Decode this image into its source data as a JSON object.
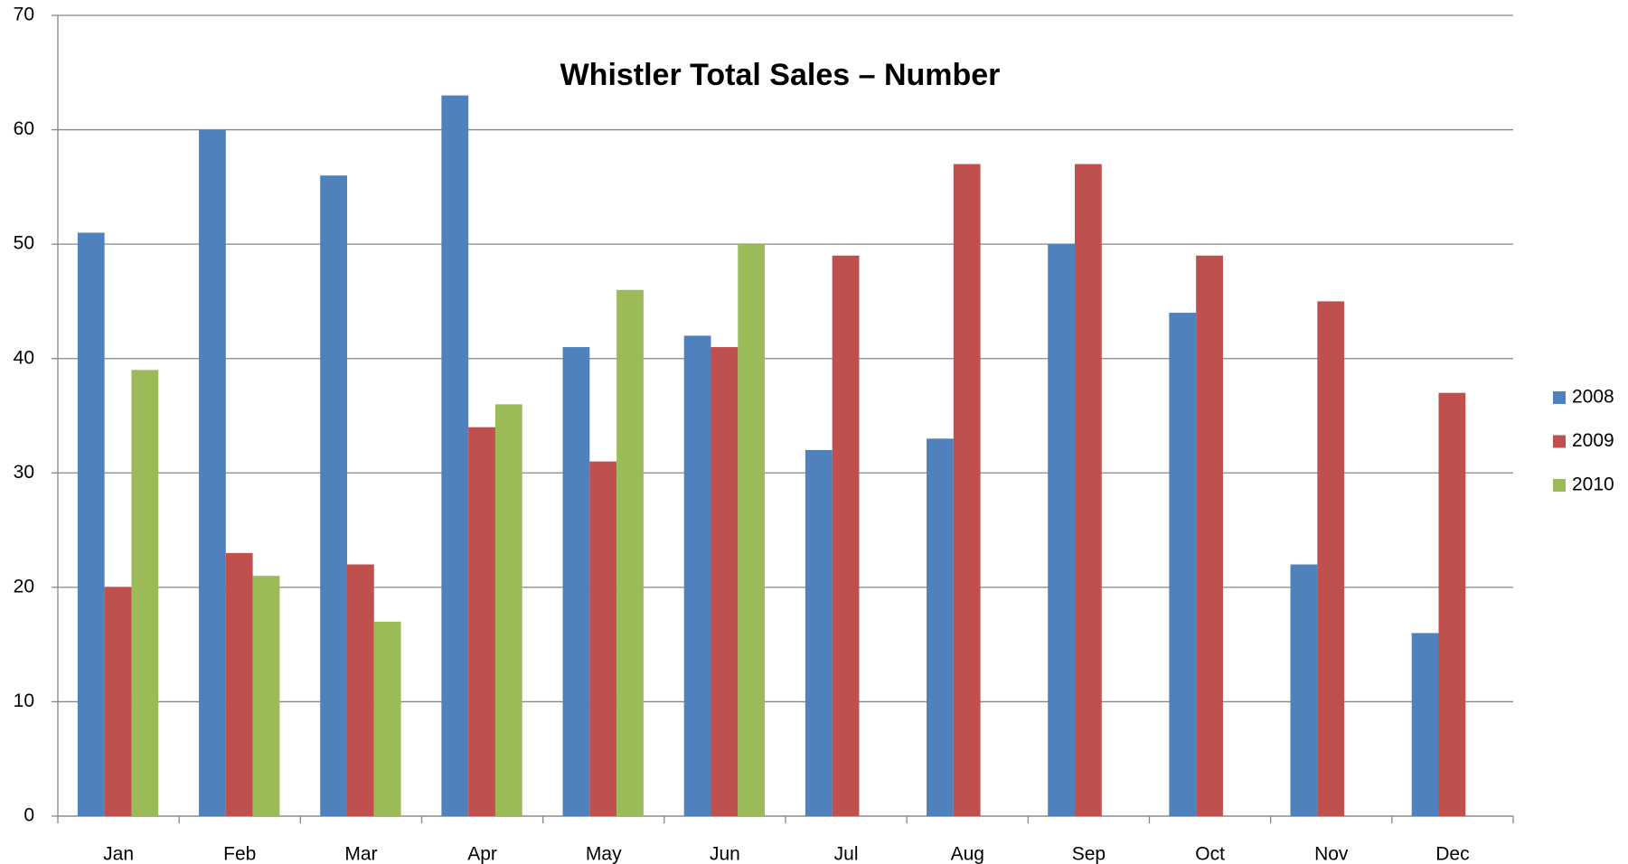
{
  "chart_data": {
    "type": "bar",
    "title": "Whistler Total Sales – Number",
    "categories": [
      "Jan",
      "Feb",
      "Mar",
      "Apr",
      "May",
      "Jun",
      "Jul",
      "Aug",
      "Sep",
      "Oct",
      "Nov",
      "Dec"
    ],
    "series": [
      {
        "name": "2008",
        "color": "#4f81bd",
        "values": [
          51,
          60,
          56,
          63,
          41,
          42,
          32,
          33,
          50,
          44,
          22,
          16
        ]
      },
      {
        "name": "2009",
        "color": "#c0504d",
        "values": [
          20,
          23,
          22,
          34,
          31,
          41,
          49,
          57,
          57,
          49,
          45,
          37
        ]
      },
      {
        "name": "2010",
        "color": "#9bbb59",
        "values": [
          39,
          21,
          17,
          36,
          46,
          50,
          null,
          null,
          null,
          null,
          null,
          null
        ]
      }
    ],
    "ylim": [
      0,
      70
    ],
    "yticks": [
      0,
      10,
      20,
      30,
      40,
      50,
      60,
      70
    ],
    "grid": true,
    "legend": "right"
  }
}
